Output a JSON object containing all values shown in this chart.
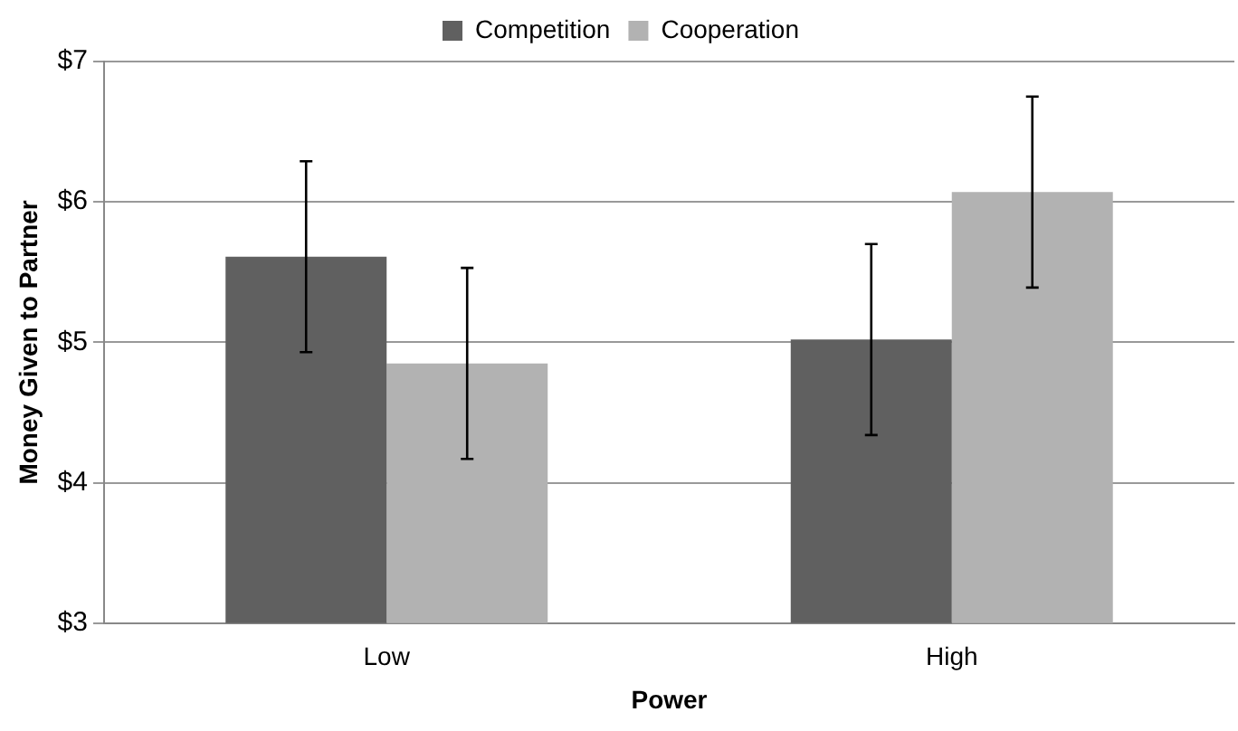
{
  "chart_data": {
    "type": "bar",
    "xlabel": "Power",
    "ylabel": "Money Given to Partner",
    "categories": [
      "Low",
      "High"
    ],
    "series": [
      {
        "name": "Competition",
        "color": "#606060",
        "values": [
          5.61,
          5.02
        ],
        "errors": [
          0.68,
          0.68
        ]
      },
      {
        "name": "Cooperation",
        "color": "#b2b2b2",
        "values": [
          4.85,
          6.07
        ],
        "errors": [
          0.68,
          0.68
        ]
      }
    ],
    "ylim": [
      3,
      7
    ],
    "yticks": [
      {
        "value": 3,
        "label": "$3"
      },
      {
        "value": 4,
        "label": "$4"
      },
      {
        "value": 5,
        "label": "$5"
      },
      {
        "value": 6,
        "label": "$6"
      },
      {
        "value": 7,
        "label": "$7"
      }
    ],
    "grid": "y",
    "legend": "top"
  }
}
